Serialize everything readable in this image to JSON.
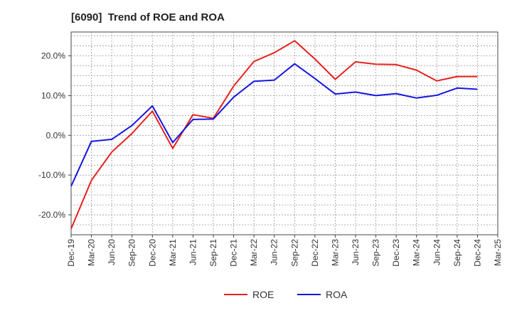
{
  "chart_data": {
    "type": "line",
    "title": "[6090]  Trend of ROE and ROA",
    "xlabel": "",
    "ylabel": "",
    "x": [
      "Dec-19",
      "Mar-20",
      "Jun-20",
      "Sep-20",
      "Dec-20",
      "Mar-21",
      "Jun-21",
      "Sep-21",
      "Dec-21",
      "Mar-22",
      "Jun-22",
      "Sep-22",
      "Dec-22",
      "Mar-23",
      "Jun-23",
      "Sep-23",
      "Dec-23",
      "Mar-24",
      "Jun-24",
      "Sep-24",
      "Dec-24",
      "Mar-25"
    ],
    "y_ticks": [
      "-20.0%",
      "-10.0%",
      "0.0%",
      "10.0%",
      "20.0%"
    ],
    "y_tick_values": [
      -20,
      -10,
      0,
      10,
      20
    ],
    "ylim": [
      -25,
      26
    ],
    "grid": true,
    "legend_position": "bottom-center",
    "series": [
      {
        "name": "ROE",
        "color": "#e8201c",
        "values": [
          -23.5,
          -11.3,
          -4.2,
          0.5,
          6.1,
          -3.3,
          5.2,
          4.3,
          12.4,
          18.6,
          20.8,
          23.8,
          19.2,
          14.1,
          18.5,
          17.9,
          17.8,
          16.4,
          13.7,
          14.8,
          14.8,
          null
        ]
      },
      {
        "name": "ROA",
        "color": "#1616e0",
        "values": [
          -12.8,
          -1.5,
          -1.0,
          2.5,
          7.4,
          -1.8,
          4.0,
          4.1,
          9.6,
          13.6,
          13.9,
          18.0,
          14.3,
          10.4,
          10.9,
          10.0,
          10.5,
          9.4,
          10.1,
          11.9,
          11.6,
          null
        ]
      }
    ]
  }
}
